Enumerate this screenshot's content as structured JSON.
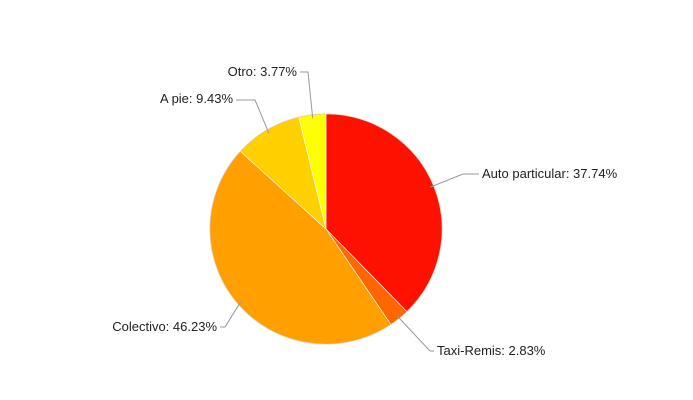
{
  "chart_data": {
    "type": "pie",
    "title": "",
    "series": [
      {
        "name": "Auto particular",
        "value": 37.74,
        "label": "Auto particular: 37.74%",
        "color": "#ff1100"
      },
      {
        "name": "Taxi-Remis",
        "value": 2.83,
        "label": "Taxi-Remis: 2.83%",
        "color": "#ff6600"
      },
      {
        "name": "Colectivo",
        "value": 46.23,
        "label": "Colectivo: 46.23%",
        "color": "#ffa000"
      },
      {
        "name": "A pie",
        "value": 9.43,
        "label": "A pie: 9.43%",
        "color": "#ffd000"
      },
      {
        "name": "Otro",
        "value": 3.77,
        "label": "Otro: 3.77%",
        "color": "#ffff00"
      }
    ],
    "legend": "none",
    "start_angle": "12 o'clock",
    "direction": "clockwise"
  }
}
